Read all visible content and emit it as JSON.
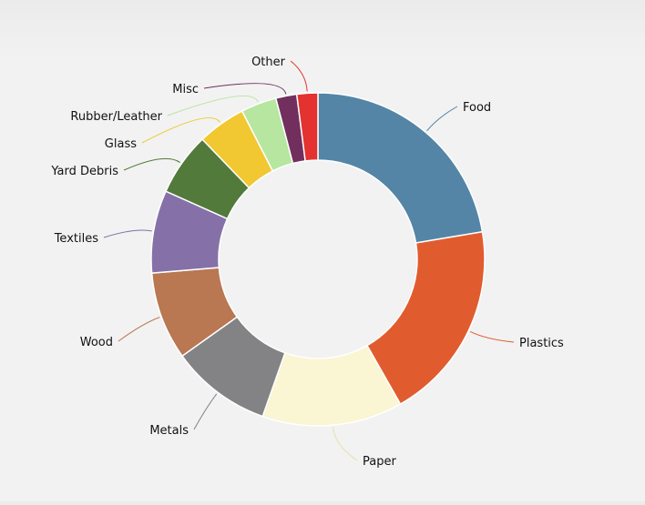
{
  "chart_data": {
    "type": "pie",
    "donut": true,
    "title": "",
    "categories": [
      "Food",
      "Plastics",
      "Paper",
      "Metals",
      "Wood",
      "Textiles",
      "Yard Debris",
      "Glass",
      "Rubber/Leather",
      "Misc",
      "Other"
    ],
    "values": [
      22.0,
      19.1,
      13.4,
      9.6,
      8.4,
      7.9,
      6.0,
      4.6,
      3.4,
      2.0,
      2.0
    ],
    "colors": [
      "#5485a6",
      "#e05c2e",
      "#faf5d2",
      "#838385",
      "#b97752",
      "#8571a8",
      "#527a3b",
      "#f1c832",
      "#b6e6a0",
      "#722f5d",
      "#e3322f"
    ],
    "legend": "none (slice labels with leader lines)",
    "start_angle": "12 o'clock, clockwise"
  }
}
